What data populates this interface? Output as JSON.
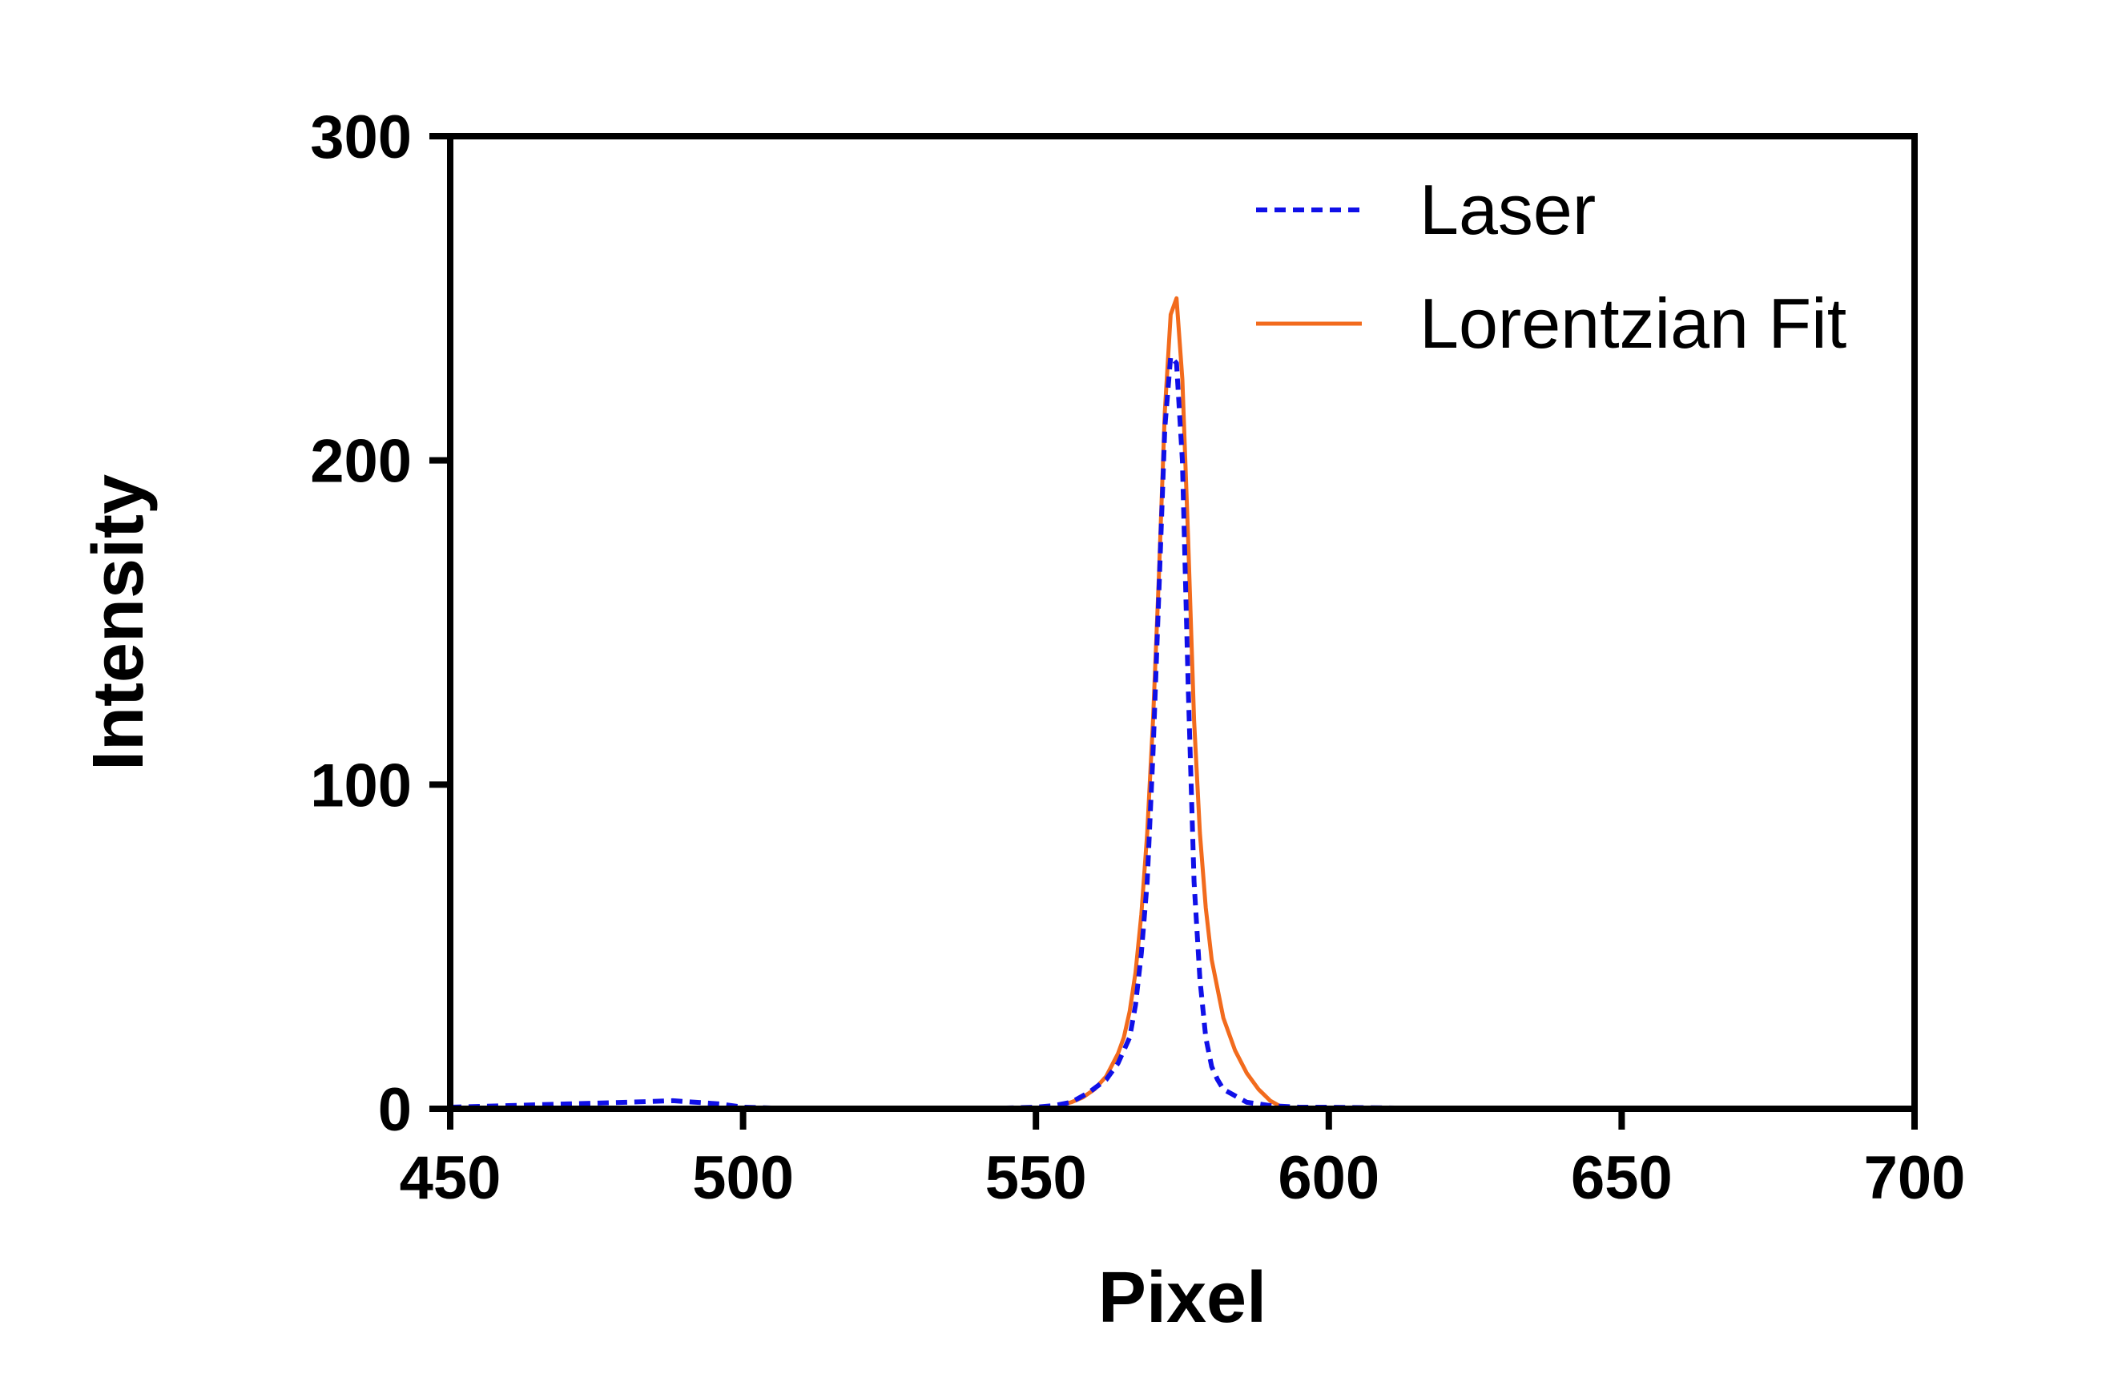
{
  "chart_data": {
    "type": "line",
    "title": "",
    "xlabel": "Pixel",
    "ylabel": "Intensity",
    "xlim": [
      450,
      700
    ],
    "ylim": [
      0,
      300
    ],
    "xticks": [
      450,
      500,
      550,
      600,
      650,
      700
    ],
    "yticks": [
      0,
      100,
      200,
      300
    ],
    "grid": false,
    "legend_position": "top-right",
    "series": [
      {
        "name": "Laser",
        "style": "dashed",
        "color": "#1010e8",
        "x": [
          450,
          460,
          470,
          480,
          488,
          492,
          496,
          500,
          510,
          520,
          530,
          540,
          550,
          553,
          556,
          559,
          562,
          564,
          566,
          567,
          568,
          569,
          570,
          571,
          572,
          573,
          574,
          575,
          576,
          577,
          578,
          579,
          580,
          581,
          582,
          584,
          586,
          590,
          595,
          600,
          610,
          620,
          650,
          700
        ],
        "y": [
          0.5,
          1,
          1.5,
          2,
          2.5,
          2,
          1.5,
          0.5,
          0,
          0,
          0,
          0,
          0.5,
          1,
          2,
          5,
          9,
          14,
          22,
          32,
          48,
          70,
          110,
          160,
          210,
          232,
          230,
          200,
          130,
          70,
          40,
          22,
          13,
          9,
          6,
          4,
          2,
          1,
          0.5,
          0.5,
          0.3,
          0,
          0,
          0
        ]
      },
      {
        "name": "Lorentzian Fit",
        "style": "solid",
        "color": "#f26b1d",
        "x": [
          554,
          556,
          558,
          560,
          562,
          564,
          565,
          566,
          567,
          568,
          569,
          570,
          571,
          572,
          573,
          574,
          575,
          576,
          577,
          578,
          579,
          580,
          582,
          584,
          586,
          588,
          590,
          592
        ],
        "y": [
          1,
          2,
          3.5,
          6,
          10,
          17,
          22,
          30,
          42,
          60,
          85,
          120,
          165,
          215,
          245,
          250,
          225,
          175,
          120,
          85,
          62,
          46,
          28,
          18,
          11,
          6,
          2.5,
          0.5
        ]
      }
    ]
  }
}
